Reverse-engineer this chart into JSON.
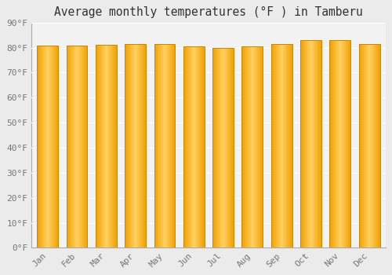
{
  "title": "Average monthly temperatures (°F ) in Tamberu",
  "months": [
    "Jan",
    "Feb",
    "Mar",
    "Apr",
    "May",
    "Jun",
    "Jul",
    "Aug",
    "Sep",
    "Oct",
    "Nov",
    "Dec"
  ],
  "values": [
    80.8,
    80.8,
    81.0,
    81.5,
    81.5,
    80.6,
    79.8,
    80.6,
    81.3,
    83.0,
    83.0,
    81.5
  ],
  "bar_color_center": "#FFD060",
  "bar_color_edge": "#F0A000",
  "background_color": "#EBEBEB",
  "plot_bg_color": "#F2F2F2",
  "grid_color": "#FFFFFF",
  "yticks": [
    0,
    10,
    20,
    30,
    40,
    50,
    60,
    70,
    80,
    90
  ],
  "ylim": [
    0,
    90
  ],
  "title_fontsize": 10.5,
  "tick_fontsize": 8,
  "bar_outline_color": "#C88800",
  "font_family": "monospace",
  "bar_width": 0.72
}
